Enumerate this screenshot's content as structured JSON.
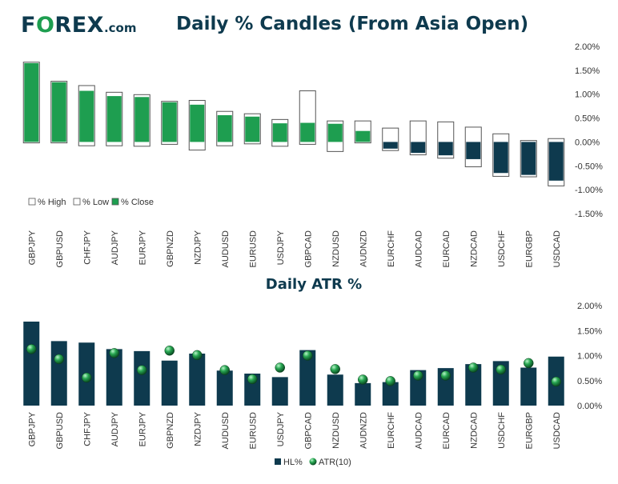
{
  "brand": {
    "logo_prefix": "F",
    "logo_o": "O",
    "logo_rest": "REX",
    "logo_suffix": ".com"
  },
  "colors": {
    "navy": "#0e3a4e",
    "green": "#1e9e50",
    "white": "#ffffff"
  },
  "chart_data": [
    {
      "type": "bar",
      "title": "Daily % Candles (From Asia Open)",
      "categories": [
        "GBPJPY",
        "GBPUSD",
        "CHFJPY",
        "AUDJPY",
        "EURJPY",
        "GBPNZD",
        "NZDJPY",
        "AUDUSD",
        "EURUSD",
        "USDJPY",
        "GBPCAD",
        "NZDUSD",
        "AUDNZD",
        "EURCHF",
        "AUDCAD",
        "EURCAD",
        "NZDCAD",
        "USDCHF",
        "EURGBP",
        "USDCAD"
      ],
      "series": [
        {
          "name": "% High",
          "values": [
            1.67,
            1.27,
            1.18,
            1.04,
            0.99,
            0.85,
            0.87,
            0.64,
            0.59,
            0.47,
            1.07,
            0.44,
            0.44,
            0.29,
            0.44,
            0.42,
            0.31,
            0.17,
            0.03,
            0.07
          ]
        },
        {
          "name": "% Low",
          "values": [
            -0.02,
            -0.02,
            -0.08,
            -0.08,
            -0.09,
            -0.05,
            -0.17,
            -0.08,
            -0.04,
            -0.09,
            -0.05,
            -0.2,
            -0.02,
            -0.18,
            -0.27,
            -0.34,
            -0.52,
            -0.72,
            -0.73,
            -0.92
          ]
        },
        {
          "name": "% Close",
          "values": [
            1.65,
            1.25,
            1.07,
            0.96,
            0.94,
            0.83,
            0.78,
            0.56,
            0.53,
            0.39,
            0.4,
            0.38,
            0.23,
            -0.14,
            -0.23,
            -0.28,
            -0.36,
            -0.65,
            -0.69,
            -0.81
          ]
        }
      ],
      "ylim": [
        -1.5,
        2.0
      ],
      "yticks": [
        "2.00%",
        "1.50%",
        "1.00%",
        "0.50%",
        "0.00%",
        "-0.50%",
        "-1.00%",
        "-1.50%"
      ],
      "ytick_values": [
        2.0,
        1.5,
        1.0,
        0.5,
        0.0,
        -0.5,
        -1.0,
        -1.5
      ],
      "legend": [
        "% High",
        "% Low",
        "% Close"
      ]
    },
    {
      "type": "bar",
      "title": "Daily ATR %",
      "categories": [
        "GBPJPY",
        "GBPUSD",
        "CHFJPY",
        "AUDJPY",
        "EURJPY",
        "GBPNZD",
        "NZDJPY",
        "AUDUSD",
        "EURUSD",
        "USDJPY",
        "GBPCAD",
        "NZDUSD",
        "AUDNZD",
        "EURCHF",
        "AUDCAD",
        "EURCAD",
        "NZDCAD",
        "USDCHF",
        "EURGBP",
        "USDCAD"
      ],
      "series": [
        {
          "name": "HL%",
          "values": [
            1.68,
            1.29,
            1.26,
            1.13,
            1.09,
            0.9,
            1.04,
            0.7,
            0.64,
            0.57,
            1.11,
            0.62,
            0.45,
            0.47,
            0.71,
            0.75,
            0.83,
            0.89,
            0.76,
            0.98
          ]
        },
        {
          "name": "ATR(10)",
          "values": [
            1.13,
            0.93,
            0.56,
            1.05,
            0.71,
            1.1,
            1.01,
            0.71,
            0.53,
            0.76,
            1.0,
            0.73,
            0.52,
            0.49,
            0.6,
            0.6,
            0.76,
            0.72,
            0.85,
            0.48
          ]
        }
      ],
      "ylim": [
        0,
        2.0
      ],
      "yticks": [
        "2.00%",
        "1.50%",
        "1.00%",
        "0.50%",
        "0.00%"
      ],
      "ytick_values": [
        2.0,
        1.5,
        1.0,
        0.5,
        0.0
      ],
      "legend": [
        "HL%",
        "ATR(10)"
      ]
    }
  ]
}
